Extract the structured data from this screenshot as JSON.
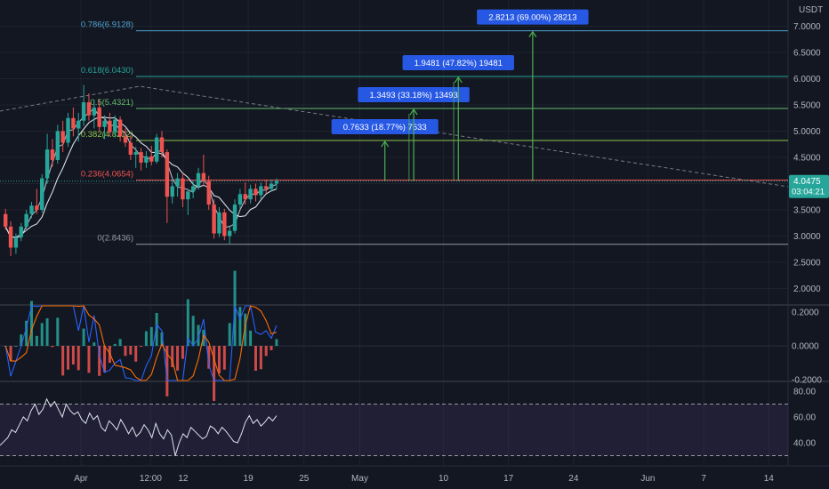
{
  "chart_data": {
    "type": "candlestick",
    "currency": "USDT",
    "main_ylim": [
      1.8,
      7.5
    ],
    "y_ticks": [
      "7.0000",
      "6.5000",
      "6.0000",
      "5.5000",
      "5.0000",
      "4.5000",
      "4.0000",
      "3.5000",
      "3.0000",
      "2.5000",
      "2.0000"
    ],
    "x_ticks": [
      {
        "label": "Apr",
        "day": 0
      },
      {
        "label": "12:00",
        "day": 7.5
      },
      {
        "label": "12",
        "day": 11
      },
      {
        "label": "19",
        "day": 18
      },
      {
        "label": "25",
        "day": 24
      },
      {
        "label": "May",
        "day": 30
      },
      {
        "label": "10",
        "day": 39
      },
      {
        "label": "17",
        "day": 46
      },
      {
        "label": "24",
        "day": 53
      },
      {
        "label": "Jun",
        "day": 61
      },
      {
        "label": "7",
        "day": 67
      },
      {
        "label": "14",
        "day": 74
      }
    ],
    "last_price": {
      "value": "4.0475",
      "countdown": "03:04:21",
      "price": 4.0475
    },
    "fib_levels": [
      {
        "label": "0.786(6.9128)",
        "price": 6.9128,
        "color": "#4fa3d1"
      },
      {
        "label": "0.618(6.0430)",
        "price": 6.043,
        "color": "#26a69a"
      },
      {
        "label": "0.5(5.4321)",
        "price": 5.4321,
        "color": "#66bb6a"
      },
      {
        "label": "0.382(4.8212)",
        "price": 4.8212,
        "color": "#8bc34a"
      },
      {
        "label": "0.236(4.0654)",
        "price": 4.0654,
        "color": "#ef5350"
      },
      {
        "label": "0(2.8436)",
        "price": 2.8436,
        "color": "#9598a1"
      }
    ],
    "targets": [
      {
        "label": "0.7633 (18.77%) 7633",
        "price": 4.8212,
        "day": 32.7
      },
      {
        "label": "1.3493 (33.18%) 13493",
        "price": 5.4321,
        "day": 35.8
      },
      {
        "label": "1.9481 (47.82%) 19481",
        "price": 6.043,
        "day": 40.6
      },
      {
        "label": "2.8213 (69.00%) 28213",
        "price": 6.9128,
        "day": 48.6
      }
    ],
    "macd": {
      "y_ticks": [
        "0.2000",
        "0.0000",
        "-0.2000"
      ],
      "ylim": [
        -0.25,
        0.25
      ]
    },
    "rsi": {
      "y_ticks": [
        "80.00",
        "60.00",
        "40.00"
      ],
      "ylim": [
        28,
        82
      ],
      "band": [
        30,
        70
      ],
      "values": [
        38,
        41,
        44,
        50,
        48,
        54,
        60,
        57,
        65,
        70,
        62,
        66,
        74,
        68,
        72,
        66,
        60,
        70,
        65,
        62,
        64,
        58,
        55,
        63,
        58,
        61,
        52,
        49,
        57,
        54,
        50,
        58,
        53,
        47,
        52,
        45,
        48,
        54,
        50,
        44,
        55,
        47,
        43,
        50,
        46,
        30,
        40,
        47,
        44,
        52,
        49,
        46,
        43,
        45,
        53,
        51,
        47,
        52,
        49,
        45,
        41,
        40,
        47,
        56,
        61,
        55,
        58,
        53,
        56,
        60,
        57,
        61
      ]
    },
    "candles": [
      {
        "o": 3.42,
        "h": 3.52,
        "l": 3.12,
        "c": 3.18
      },
      {
        "o": 3.18,
        "h": 3.28,
        "l": 2.62,
        "c": 2.78
      },
      {
        "o": 2.78,
        "h": 3.05,
        "l": 2.66,
        "c": 2.98
      },
      {
        "o": 2.98,
        "h": 3.25,
        "l": 2.9,
        "c": 3.18
      },
      {
        "o": 3.18,
        "h": 3.5,
        "l": 3.1,
        "c": 3.42
      },
      {
        "o": 3.42,
        "h": 3.65,
        "l": 3.34,
        "c": 3.58
      },
      {
        "o": 3.58,
        "h": 3.9,
        "l": 3.42,
        "c": 3.5
      },
      {
        "o": 3.5,
        "h": 4.18,
        "l": 3.45,
        "c": 4.1
      },
      {
        "o": 4.1,
        "h": 4.95,
        "l": 4.0,
        "c": 4.65
      },
      {
        "o": 4.65,
        "h": 4.85,
        "l": 4.32,
        "c": 4.45
      },
      {
        "o": 4.45,
        "h": 5.12,
        "l": 4.38,
        "c": 5.0
      },
      {
        "o": 5.0,
        "h": 5.2,
        "l": 4.6,
        "c": 4.78
      },
      {
        "o": 4.78,
        "h": 5.35,
        "l": 4.7,
        "c": 5.25
      },
      {
        "o": 5.25,
        "h": 5.45,
        "l": 4.9,
        "c": 5.05
      },
      {
        "o": 5.05,
        "h": 5.35,
        "l": 4.8,
        "c": 5.2
      },
      {
        "o": 5.2,
        "h": 5.88,
        "l": 5.1,
        "c": 5.55
      },
      {
        "o": 5.55,
        "h": 5.72,
        "l": 5.2,
        "c": 5.3
      },
      {
        "o": 5.3,
        "h": 5.6,
        "l": 5.05,
        "c": 5.45
      },
      {
        "o": 5.45,
        "h": 5.6,
        "l": 5.0,
        "c": 5.08
      },
      {
        "o": 5.08,
        "h": 5.3,
        "l": 4.85,
        "c": 5.2
      },
      {
        "o": 5.2,
        "h": 5.35,
        "l": 4.9,
        "c": 4.98
      },
      {
        "o": 4.98,
        "h": 5.3,
        "l": 4.88,
        "c": 5.22
      },
      {
        "o": 5.22,
        "h": 5.28,
        "l": 4.8,
        "c": 4.9
      },
      {
        "o": 4.9,
        "h": 5.05,
        "l": 4.7,
        "c": 4.78
      },
      {
        "o": 4.78,
        "h": 4.92,
        "l": 4.45,
        "c": 4.55
      },
      {
        "o": 4.55,
        "h": 4.7,
        "l": 4.3,
        "c": 4.6
      },
      {
        "o": 4.6,
        "h": 4.68,
        "l": 4.25,
        "c": 4.4
      },
      {
        "o": 4.4,
        "h": 4.62,
        "l": 4.3,
        "c": 4.52
      },
      {
        "o": 4.52,
        "h": 4.72,
        "l": 4.35,
        "c": 4.42
      },
      {
        "o": 4.42,
        "h": 4.95,
        "l": 4.38,
        "c": 4.88
      },
      {
        "o": 4.88,
        "h": 5.0,
        "l": 4.5,
        "c": 4.6
      },
      {
        "o": 4.6,
        "h": 4.65,
        "l": 3.25,
        "c": 3.75
      },
      {
        "o": 3.75,
        "h": 4.1,
        "l": 3.62,
        "c": 3.95
      },
      {
        "o": 3.95,
        "h": 4.2,
        "l": 3.75,
        "c": 4.1
      },
      {
        "o": 4.1,
        "h": 4.2,
        "l": 3.55,
        "c": 3.7
      },
      {
        "o": 3.7,
        "h": 3.9,
        "l": 3.4,
        "c": 3.85
      },
      {
        "o": 3.85,
        "h": 4.05,
        "l": 3.72,
        "c": 3.95
      },
      {
        "o": 3.95,
        "h": 4.3,
        "l": 3.88,
        "c": 4.2
      },
      {
        "o": 4.2,
        "h": 4.55,
        "l": 3.95,
        "c": 4.05
      },
      {
        "o": 4.05,
        "h": 4.15,
        "l": 3.5,
        "c": 3.6
      },
      {
        "o": 3.6,
        "h": 3.7,
        "l": 2.95,
        "c": 3.05
      },
      {
        "o": 3.05,
        "h": 3.55,
        "l": 2.98,
        "c": 3.45
      },
      {
        "o": 3.45,
        "h": 3.52,
        "l": 2.92,
        "c": 3.0
      },
      {
        "o": 3.0,
        "h": 3.18,
        "l": 2.84,
        "c": 3.1
      },
      {
        "o": 3.1,
        "h": 3.7,
        "l": 3.05,
        "c": 3.6
      },
      {
        "o": 3.6,
        "h": 3.9,
        "l": 3.52,
        "c": 3.8
      },
      {
        "o": 3.8,
        "h": 4.02,
        "l": 3.6,
        "c": 3.7
      },
      {
        "o": 3.7,
        "h": 3.98,
        "l": 3.62,
        "c": 3.9
      },
      {
        "o": 3.9,
        "h": 4.0,
        "l": 3.66,
        "c": 3.78
      },
      {
        "o": 3.78,
        "h": 4.02,
        "l": 3.7,
        "c": 3.95
      },
      {
        "o": 3.95,
        "h": 4.08,
        "l": 3.82,
        "c": 3.9
      },
      {
        "o": 3.9,
        "h": 4.08,
        "l": 3.85,
        "c": 4.0
      },
      {
        "o": 4.0,
        "h": 4.1,
        "l": 3.9,
        "c": 4.0475
      }
    ]
  }
}
